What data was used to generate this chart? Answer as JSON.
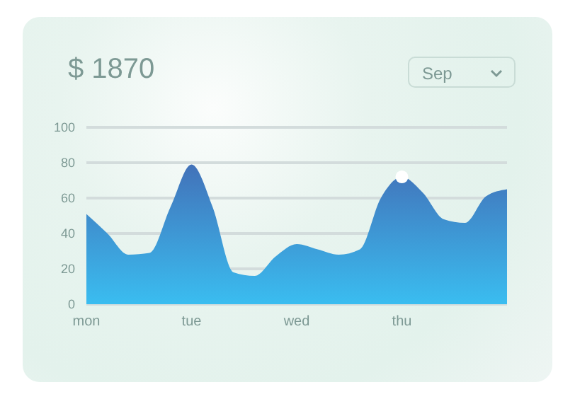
{
  "chart_data": {
    "type": "area",
    "title": "$ 1870",
    "annotations": [
      "Sep"
    ],
    "categories": [
      "mon",
      null,
      null,
      null,
      null,
      "tue",
      null,
      null,
      null,
      null,
      "wed",
      null,
      null,
      null,
      null,
      "thu",
      null,
      null,
      null,
      null,
      null
    ],
    "series": [
      {
        "color": "#4272b9",
        "values": [
          51,
          40,
          28,
          29,
          55,
          79,
          55,
          18,
          16,
          27,
          34,
          31,
          28,
          31,
          60,
          72,
          63,
          48,
          46,
          61,
          65
        ]
      },
      {
        "type": "scatter",
        "color": "#ffffff",
        "x": [
          "thu"
        ],
        "values": [
          72
        ],
        "marker": "circle"
      }
    ],
    "ylim": [
      0,
      100
    ],
    "yticks": [
      0,
      20,
      40,
      60,
      80,
      100
    ],
    "grid": "y"
  }
}
